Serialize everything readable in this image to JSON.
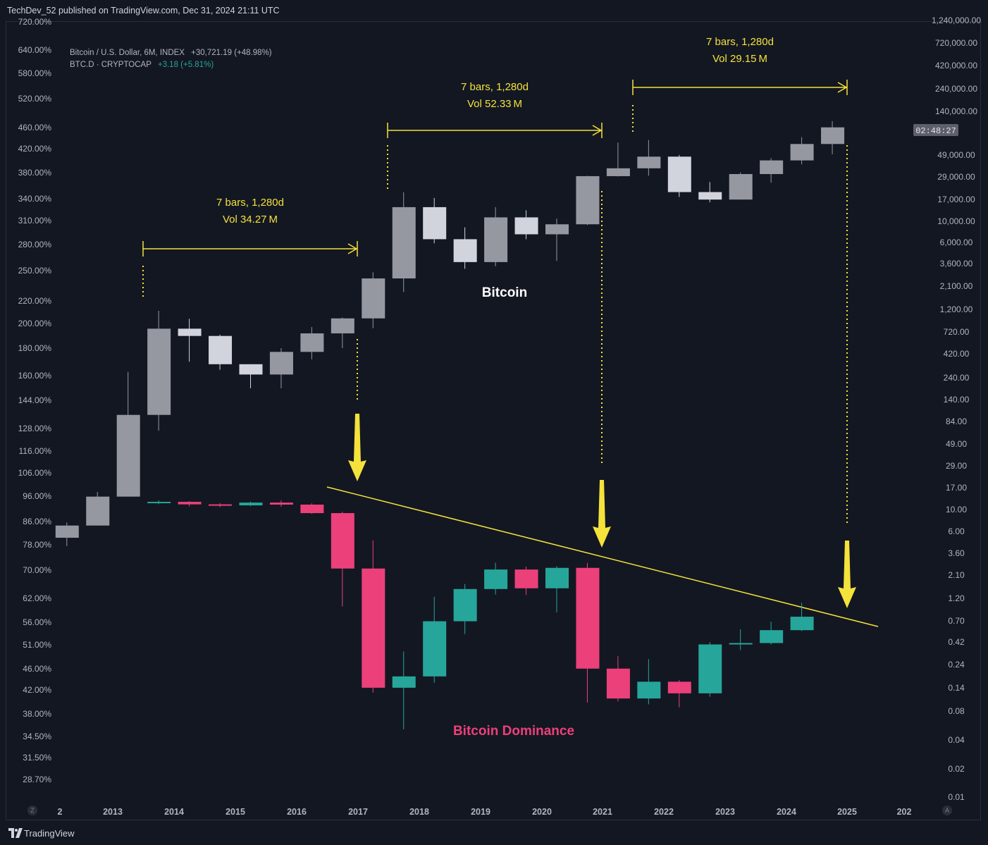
{
  "header": {
    "publisher_line": "TechDev_52 published on TradingView.com, Dec 31, 2024 21:11 UTC"
  },
  "legend": {
    "series1_name": "Bitcoin / U.S. Dollar, 6M, INDEX",
    "series1_change": "+30,721.19 (+48.98%)",
    "series2_name": "BTC.D · CRYPTOCAP",
    "series2_change": "+3.18 (+5.81%)"
  },
  "footer": {
    "brand": "TradingView",
    "left_button": "Z",
    "right_button": "A"
  },
  "colors": {
    "background": "#131722",
    "btc_up": "#9598a1",
    "btc_down": "#d1d4dc",
    "dom_up": "#26a69a",
    "dom_down": "#ec407a",
    "annotation": "#f5e23b",
    "dominance_label": "#ec407a"
  },
  "chart_data": {
    "type": "candlestick",
    "x_axis_labels": [
      "2",
      "2013",
      "2014",
      "2015",
      "2016",
      "2017",
      "2018",
      "2019",
      "2020",
      "2021",
      "2022",
      "2023",
      "2024",
      "2025",
      "202"
    ],
    "left_axis_labels": [
      "720.00%",
      "640.00%",
      "580.00%",
      "520.00%",
      "460.00%",
      "420.00%",
      "380.00%",
      "340.00%",
      "310.00%",
      "280.00%",
      "250.00%",
      "220.00%",
      "200.00%",
      "180.00%",
      "160.00%",
      "144.00%",
      "128.00%",
      "116.00%",
      "106.00%",
      "96.00%",
      "86.00%",
      "78.00%",
      "70.00%",
      "62.00%",
      "56.00%",
      "51.00%",
      "46.00%",
      "42.00%",
      "38.00%",
      "34.50%",
      "31.50%",
      "28.70%"
    ],
    "right_axis_labels": [
      "1,240,000.00",
      "720,000.00",
      "420,000.00",
      "240,000.00",
      "140,000.00",
      "49,000.00",
      "29,000.00",
      "17,000.00",
      "10,000.00",
      "6,000.00",
      "3,600.00",
      "2,100.00",
      "1,200.00",
      "720.00",
      "420.00",
      "240.00",
      "140.00",
      "84.00",
      "49.00",
      "29.00",
      "17.00",
      "10.00",
      "6.00",
      "3.60",
      "2.10",
      "1.20",
      "0.70",
      "0.42",
      "0.24",
      "0.14",
      "0.08",
      "0.04",
      "0.02",
      "0.01"
    ],
    "price_tag": "02:48:27",
    "series": [
      {
        "name": "Bitcoin / U.S. Dollar",
        "candles": [
          {
            "t": "2012-01",
            "o": 5.0,
            "h": 7.2,
            "l": 4.1,
            "c": 6.7
          },
          {
            "t": "2012-07",
            "o": 6.7,
            "h": 15.0,
            "l": 6.7,
            "c": 13.4
          },
          {
            "t": "2013-01",
            "o": 13.4,
            "h": 266,
            "l": 13.4,
            "c": 95
          },
          {
            "t": "2013-07",
            "o": 95,
            "h": 1150,
            "l": 65,
            "c": 750
          },
          {
            "t": "2014-01",
            "o": 750,
            "h": 950,
            "l": 340,
            "c": 630
          },
          {
            "t": "2014-07",
            "o": 630,
            "h": 650,
            "l": 280,
            "c": 320
          },
          {
            "t": "2015-01",
            "o": 320,
            "h": 320,
            "l": 180,
            "c": 250
          },
          {
            "t": "2015-07",
            "o": 250,
            "h": 470,
            "l": 180,
            "c": 430
          },
          {
            "t": "2016-01",
            "o": 430,
            "h": 780,
            "l": 360,
            "c": 670
          },
          {
            "t": "2016-07",
            "o": 670,
            "h": 980,
            "l": 470,
            "c": 960
          },
          {
            "t": "2017-01",
            "o": 960,
            "h": 2900,
            "l": 760,
            "c": 2500
          },
          {
            "t": "2017-07",
            "o": 2500,
            "h": 19700,
            "l": 1800,
            "c": 13800
          },
          {
            "t": "2018-01",
            "o": 13800,
            "h": 17200,
            "l": 5800,
            "c": 6400
          },
          {
            "t": "2018-07",
            "o": 6400,
            "h": 8500,
            "l": 3150,
            "c": 3700
          },
          {
            "t": "2019-01",
            "o": 3700,
            "h": 13800,
            "l": 3350,
            "c": 10800
          },
          {
            "t": "2019-07",
            "o": 10800,
            "h": 12800,
            "l": 6400,
            "c": 7200
          },
          {
            "t": "2020-01",
            "o": 7200,
            "h": 10500,
            "l": 3800,
            "c": 9150
          },
          {
            "t": "2020-07",
            "o": 9150,
            "h": 29300,
            "l": 9000,
            "c": 29000
          },
          {
            "t": "2021-01",
            "o": 29000,
            "h": 64800,
            "l": 28800,
            "c": 35000
          },
          {
            "t": "2021-07",
            "o": 35000,
            "h": 69000,
            "l": 29300,
            "c": 46300
          },
          {
            "t": "2022-01",
            "o": 46300,
            "h": 48200,
            "l": 17600,
            "c": 19800
          },
          {
            "t": "2022-07",
            "o": 19800,
            "h": 25200,
            "l": 15500,
            "c": 16550
          },
          {
            "t": "2023-01",
            "o": 16550,
            "h": 31800,
            "l": 16500,
            "c": 30500
          },
          {
            "t": "2023-07",
            "o": 30500,
            "h": 44700,
            "l": 24800,
            "c": 42300
          },
          {
            "t": "2024-01",
            "o": 42300,
            "h": 73800,
            "l": 38500,
            "c": 62700
          },
          {
            "t": "2024-07",
            "o": 62700,
            "h": 108300,
            "l": 49000,
            "c": 93400
          }
        ]
      },
      {
        "name": "BTC.D",
        "candles": [
          {
            "t": "2013-07",
            "o": 93.5,
            "h": 94.3,
            "l": 92.8,
            "c": 93.7
          },
          {
            "t": "2014-01",
            "o": 93.7,
            "h": 94.0,
            "l": 91.9,
            "c": 92.7
          },
          {
            "t": "2014-07",
            "o": 92.7,
            "h": 93.2,
            "l": 91.6,
            "c": 92.3
          },
          {
            "t": "2015-01",
            "o": 92.3,
            "h": 93.8,
            "l": 92.0,
            "c": 93.4
          },
          {
            "t": "2015-07",
            "o": 93.4,
            "h": 94.3,
            "l": 91.8,
            "c": 92.6
          },
          {
            "t": "2016-01",
            "o": 92.6,
            "h": 93.1,
            "l": 89.0,
            "c": 89.3
          },
          {
            "t": "2016-07",
            "o": 89.3,
            "h": 89.8,
            "l": 60.0,
            "c": 70.5
          },
          {
            "t": "2017-01",
            "o": 70.5,
            "h": 79.5,
            "l": 41.5,
            "c": 42.4
          },
          {
            "t": "2017-07",
            "o": 42.4,
            "h": 49.5,
            "l": 35.5,
            "c": 44.5
          },
          {
            "t": "2018-01",
            "o": 44.5,
            "h": 62.5,
            "l": 43.3,
            "c": 56.3
          },
          {
            "t": "2018-07",
            "o": 56.3,
            "h": 66.0,
            "l": 53.3,
            "c": 64.6
          },
          {
            "t": "2019-01",
            "o": 64.6,
            "h": 72.3,
            "l": 63.1,
            "c": 70.2
          },
          {
            "t": "2019-07",
            "o": 70.2,
            "h": 71.1,
            "l": 63.0,
            "c": 64.8
          },
          {
            "t": "2020-01",
            "o": 64.8,
            "h": 71.2,
            "l": 58.5,
            "c": 70.7
          },
          {
            "t": "2020-07",
            "o": 70.7,
            "h": 72.2,
            "l": 39.8,
            "c": 46.0
          },
          {
            "t": "2021-01",
            "o": 46.0,
            "h": 48.5,
            "l": 40.0,
            "c": 40.5
          },
          {
            "t": "2021-07",
            "o": 40.5,
            "h": 47.9,
            "l": 39.5,
            "c": 43.5
          },
          {
            "t": "2022-01",
            "o": 43.5,
            "h": 43.8,
            "l": 39.0,
            "c": 41.4
          },
          {
            "t": "2022-07",
            "o": 41.4,
            "h": 51.5,
            "l": 40.8,
            "c": 51.0
          },
          {
            "t": "2023-01",
            "o": 51.0,
            "h": 54.4,
            "l": 49.8,
            "c": 51.3
          },
          {
            "t": "2023-07",
            "o": 51.3,
            "h": 56.2,
            "l": 51.0,
            "c": 54.2
          },
          {
            "t": "2024-01",
            "o": 54.2,
            "h": 60.9,
            "l": 54.0,
            "c": 57.4
          }
        ]
      }
    ],
    "series_labels": [
      "Bitcoin",
      "Bitcoin Dominance"
    ],
    "annotations": [
      {
        "type": "date-range",
        "lines": [
          "7 bars, 1,280d",
          "Vol 34.27 M"
        ]
      },
      {
        "type": "date-range",
        "lines": [
          "7 bars, 1,280d",
          "Vol 52.33 M"
        ]
      },
      {
        "type": "date-range",
        "lines": [
          "7 bars, 1,280d",
          "Vol 29.15 M"
        ]
      }
    ]
  }
}
